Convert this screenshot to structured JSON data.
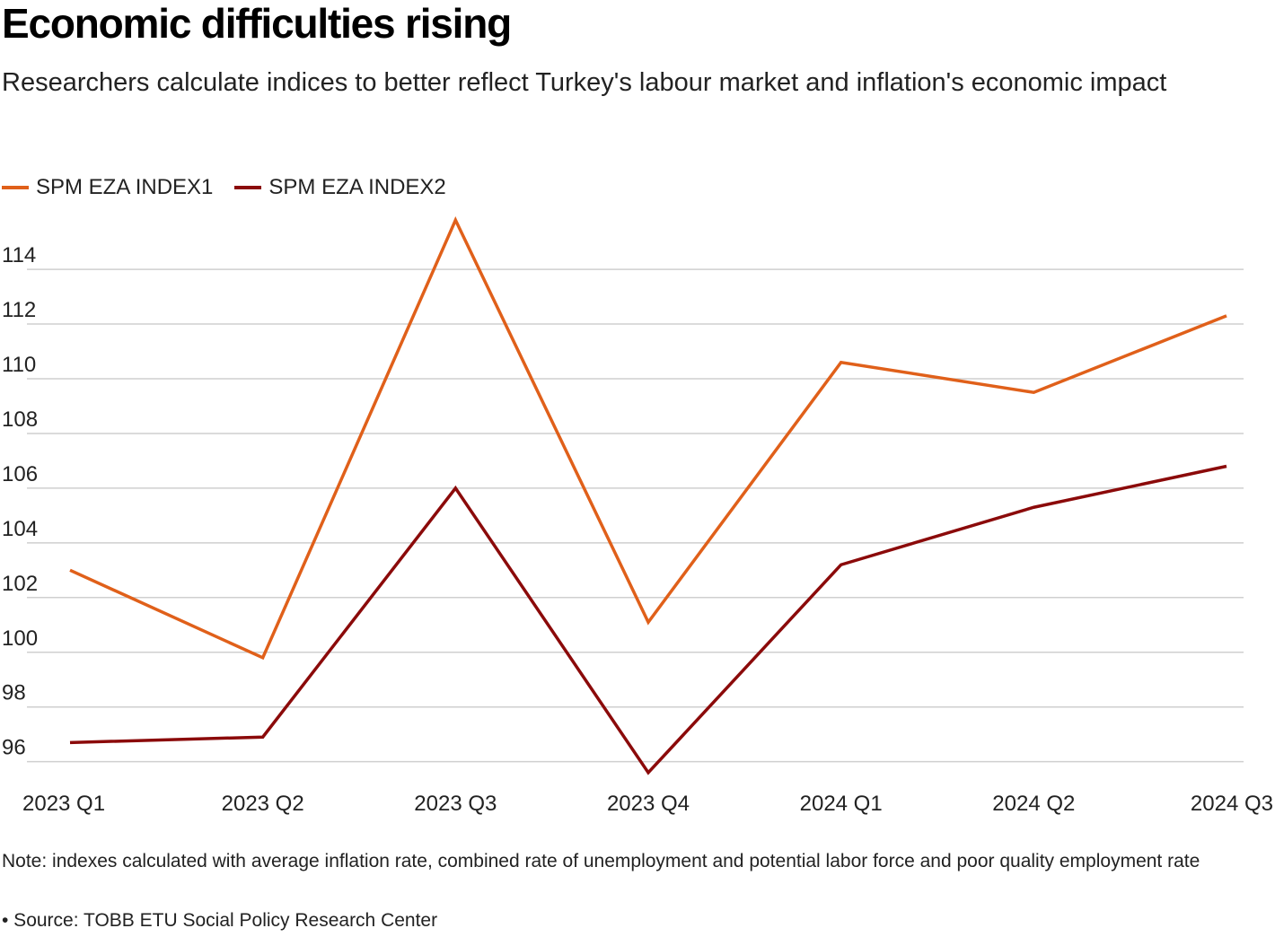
{
  "title": "Economic difficulties rising",
  "subtitle": "Researchers calculate indices to better reflect Turkey's labour market and inflation's economic impact",
  "note": "Note: indexes calculated with average inflation rate, combined rate of unemployment and potential labor force and poor quality employment rate",
  "source": "• Source: TOBB ETU Social Policy Research Center",
  "chart_data": {
    "type": "line",
    "title": "Economic difficulties rising",
    "xlabel": "",
    "ylabel": "",
    "categories": [
      "2023 Q1",
      "2023 Q2",
      "2023 Q3",
      "2023 Q4",
      "2024 Q1",
      "2024 Q2",
      "2024 Q3"
    ],
    "series": [
      {
        "name": "SPM EZA INDEX1",
        "color": "#e0601a",
        "values": [
          103.0,
          99.8,
          115.8,
          101.1,
          110.6,
          109.5,
          112.3
        ]
      },
      {
        "name": "SPM EZA INDEX2",
        "color": "#8b0a0a",
        "values": [
          96.7,
          96.9,
          106.0,
          95.6,
          103.2,
          105.3,
          106.8
        ]
      }
    ],
    "yticks": [
      96,
      98,
      100,
      102,
      104,
      106,
      108,
      110,
      112,
      114
    ],
    "ylim": [
      95.3,
      116.3
    ],
    "grid": true,
    "legend": "top-left"
  }
}
